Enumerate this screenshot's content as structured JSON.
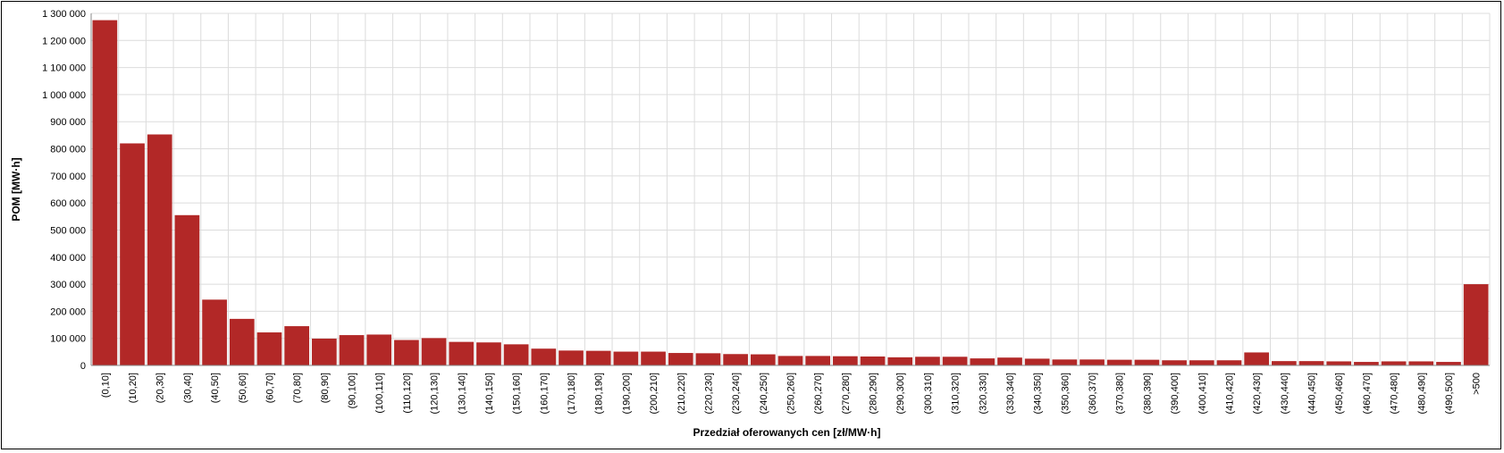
{
  "chart_data": {
    "type": "bar",
    "xlabel": "Przedział oferowanych cen [zł/MW·h]",
    "ylabel": "POM [MW·h]",
    "ylim": [
      0,
      1300000
    ],
    "ytick_step": 100000,
    "ytick_labels": [
      "0",
      "100 000",
      "200 000",
      "300 000",
      "400 000",
      "500 000",
      "600 000",
      "700 000",
      "800 000",
      "900 000",
      "1 000 000",
      "1 100 000",
      "1 200 000",
      "1 300 000"
    ],
    "grid": true,
    "bar_color": "#b22827",
    "categories": [
      "(0,10]",
      "(10,20]",
      "(20,30]",
      "(30,40]",
      "(40,50]",
      "(50,60]",
      "(60,70]",
      "(70,80]",
      "(80,90]",
      "(90,100]",
      "(100,110]",
      "(110,120]",
      "(120,130]",
      "(130,140]",
      "(140,150]",
      "(150,160]",
      "(160,170]",
      "(170,180]",
      "(180,190]",
      "(190,200]",
      "(200,210]",
      "(210,220]",
      "(220,230]",
      "(230,240]",
      "(240,250]",
      "(250,260]",
      "(260,270]",
      "(270,280]",
      "(280,290]",
      "(290,300]",
      "(300,310]",
      "(310,320]",
      "(320,330]",
      "(330,340]",
      "(340,350]",
      "(350,360]",
      "(360,370]",
      "(370,380]",
      "(380,390]",
      "(390,400]",
      "(400,410]",
      "(410,420]",
      "(420,430]",
      "(430,440]",
      "(440,450]",
      "(450,460]",
      "(460,470]",
      "(470,480]",
      "(480,490]",
      "(490,500]",
      ">500"
    ],
    "values": [
      1275000,
      820000,
      853000,
      555000,
      243000,
      172000,
      122000,
      145000,
      99000,
      112000,
      114000,
      94000,
      101000,
      87000,
      85000,
      78000,
      62000,
      55000,
      54000,
      51000,
      51000,
      46000,
      45000,
      42000,
      41000,
      35000,
      35000,
      34000,
      33000,
      30000,
      32000,
      32000,
      26000,
      29000,
      25000,
      22000,
      22000,
      21000,
      21000,
      19000,
      19000,
      19000,
      48000,
      16000,
      16000,
      15000,
      13000,
      15000,
      15000,
      13000,
      300000
    ]
  }
}
